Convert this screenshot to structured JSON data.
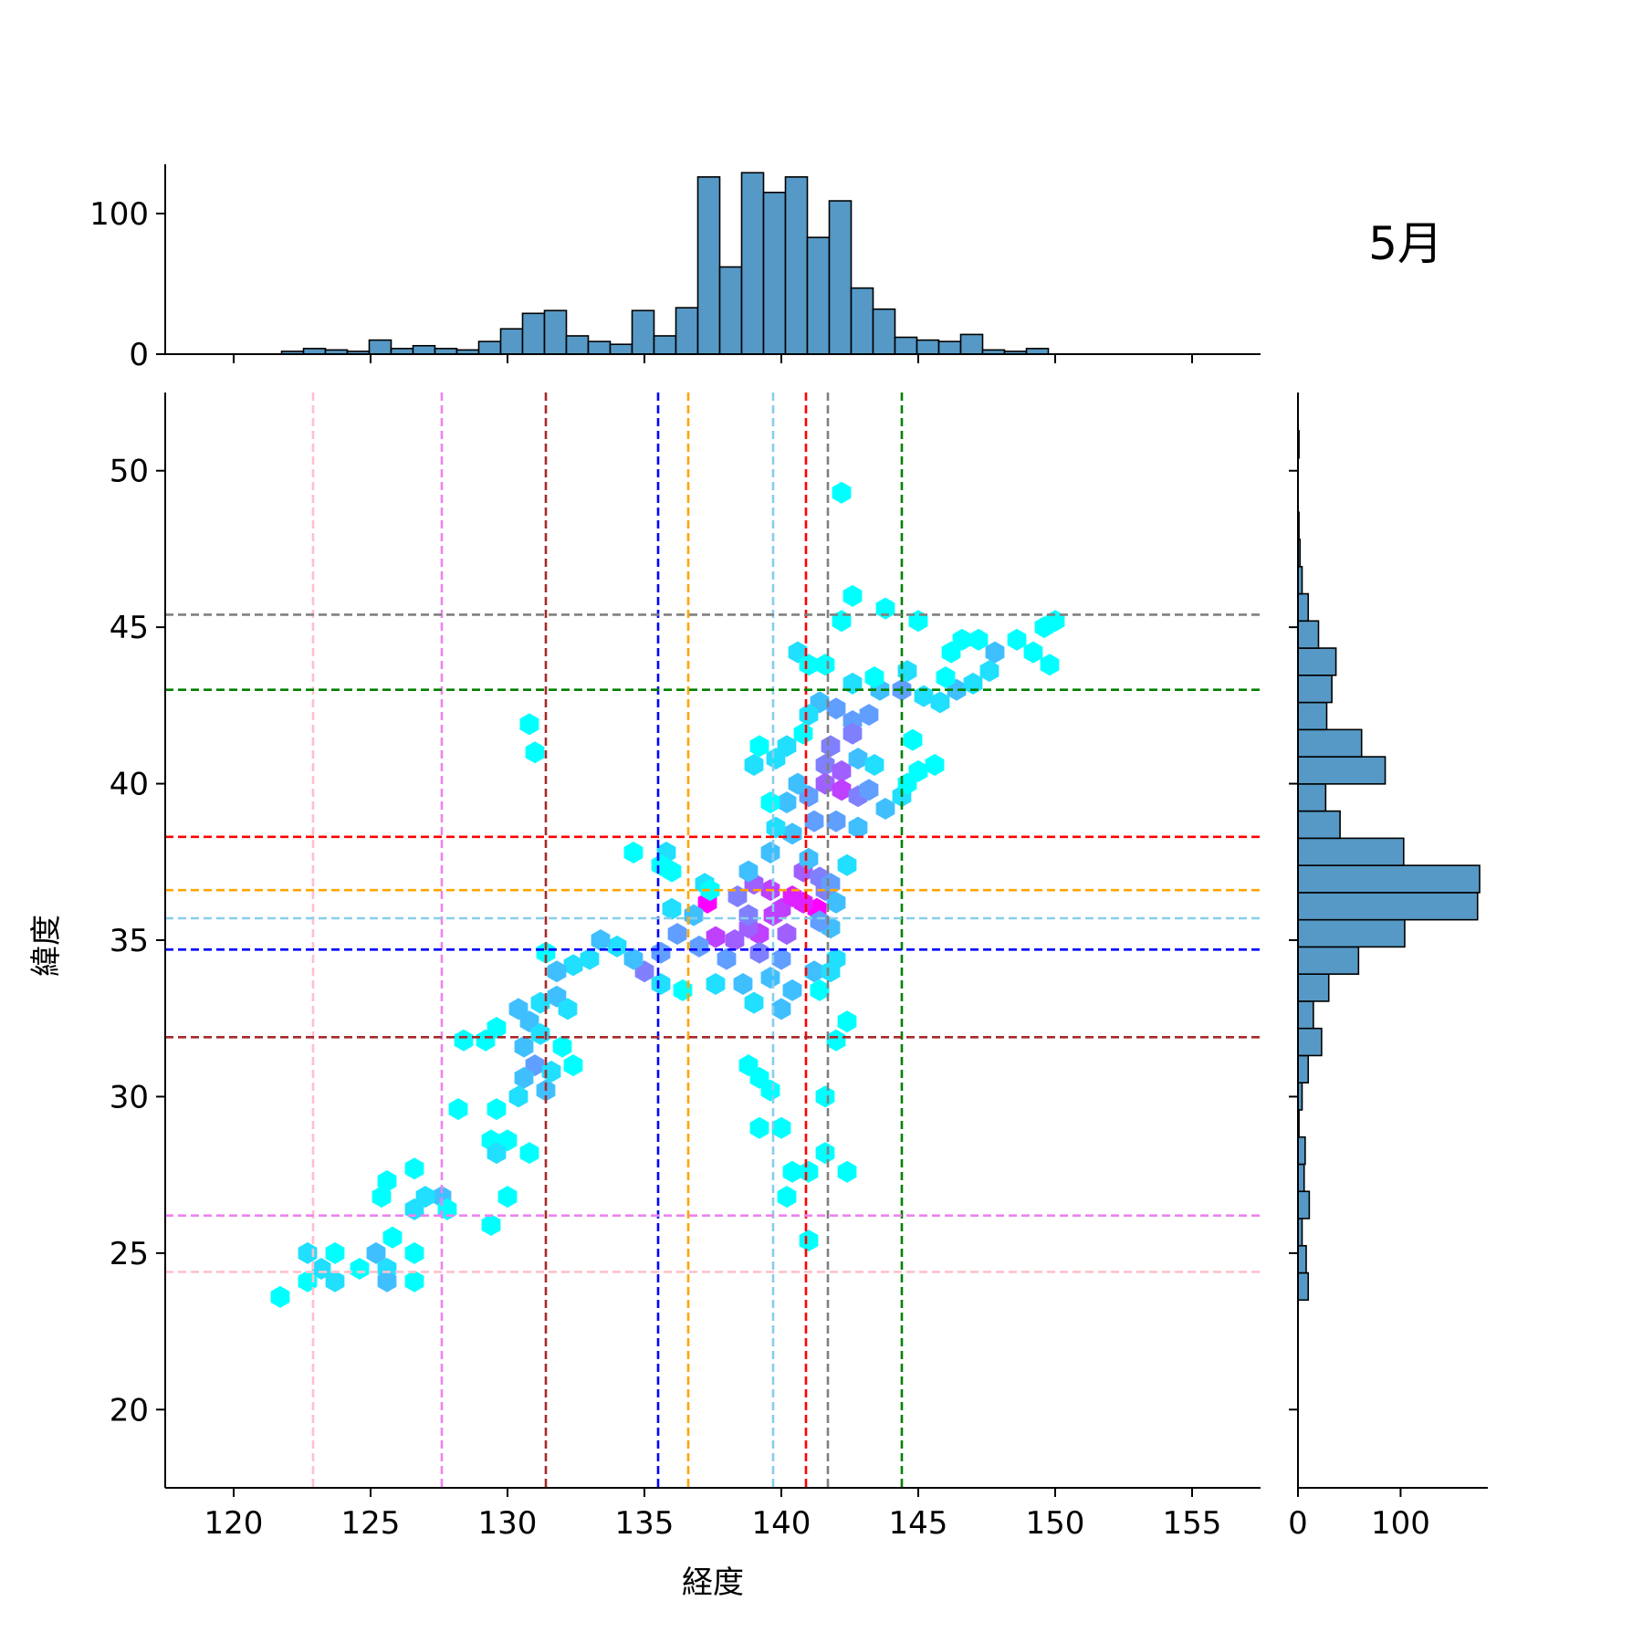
{
  "chart_data": {
    "type": "hexbin",
    "title": "5月",
    "xlabel": "経度",
    "ylabel": "緯度",
    "xlim": [
      117.5,
      157.5
    ],
    "ylim": [
      17.5,
      52.5
    ],
    "x_ticks": [
      120,
      125,
      130,
      135,
      140,
      145,
      150,
      155
    ],
    "y_ticks": [
      20,
      25,
      30,
      35,
      40,
      45,
      50
    ],
    "marginal_x": {
      "ylim": [
        0,
        135
      ],
      "y_ticks": [
        0,
        100
      ],
      "bin_start": 121.75,
      "bin_width": 0.8,
      "counts": [
        2,
        4,
        3,
        2,
        10,
        4,
        6,
        4,
        3,
        9,
        18,
        29,
        31,
        13,
        9,
        7,
        31,
        13,
        33,
        126,
        62,
        129,
        115,
        126,
        83,
        109,
        47,
        32,
        12,
        10,
        9,
        14,
        3,
        2,
        4,
        0,
        0,
        0,
        0,
        0,
        0,
        0
      ]
    },
    "marginal_y": {
      "xlim": [
        0,
        185
      ],
      "x_ticks": [
        0,
        100
      ],
      "bin_start": 23.5,
      "bin_width": 0.868,
      "counts": [
        10,
        8,
        4,
        11,
        6,
        7,
        1,
        4,
        10,
        23,
        15,
        30,
        59,
        104,
        175,
        177,
        103,
        41,
        27,
        85,
        62,
        28,
        33,
        37,
        20,
        10,
        4,
        2,
        1,
        0,
        0,
        1
      ]
    },
    "points": [
      [
        141.3,
        36.0,
        9
      ],
      [
        140.8,
        36.2,
        8
      ],
      [
        140.0,
        36.0,
        7
      ],
      [
        139.7,
        35.8,
        7
      ],
      [
        137.3,
        36.2,
        9
      ],
      [
        139.2,
        35.2,
        7
      ],
      [
        138.8,
        35.4,
        6
      ],
      [
        138.3,
        35.0,
        6
      ],
      [
        137.6,
        35.1,
        7
      ],
      [
        140.2,
        35.2,
        6
      ],
      [
        140.4,
        36.4,
        8
      ],
      [
        139.6,
        36.6,
        7
      ],
      [
        139.0,
        36.8,
        6
      ],
      [
        140.8,
        37.2,
        6
      ],
      [
        141.4,
        37.0,
        5
      ],
      [
        139.2,
        34.6,
        5
      ],
      [
        138.0,
        34.4,
        4
      ],
      [
        141.6,
        36.6,
        5
      ],
      [
        138.4,
        36.4,
        5
      ],
      [
        141.8,
        36.8,
        4
      ],
      [
        136.8,
        35.8,
        3
      ],
      [
        136.2,
        35.2,
        4
      ],
      [
        137.0,
        34.8,
        4
      ],
      [
        138.8,
        35.8,
        5
      ],
      [
        140.0,
        34.4,
        4
      ],
      [
        139.6,
        33.8,
        3
      ],
      [
        140.4,
        33.4,
        3
      ],
      [
        141.2,
        34.0,
        3
      ],
      [
        142.0,
        34.4,
        2
      ],
      [
        138.6,
        33.6,
        3
      ],
      [
        137.6,
        33.6,
        2
      ],
      [
        139.0,
        33.0,
        2
      ],
      [
        140.0,
        32.8,
        3
      ],
      [
        141.8,
        35.4,
        3
      ],
      [
        141.4,
        35.6,
        4
      ],
      [
        142.0,
        36.2,
        3
      ],
      [
        142.4,
        37.4,
        2
      ],
      [
        141.0,
        37.6,
        3
      ],
      [
        139.6,
        37.8,
        3
      ],
      [
        138.8,
        37.2,
        3
      ],
      [
        137.2,
        36.8,
        2
      ],
      [
        136.0,
        36.0,
        2
      ],
      [
        135.6,
        34.6,
        4
      ],
      [
        135.0,
        34.0,
        5
      ],
      [
        134.6,
        34.4,
        3
      ],
      [
        135.6,
        33.6,
        2
      ],
      [
        136.4,
        33.4,
        1
      ],
      [
        134.0,
        34.8,
        2
      ],
      [
        133.4,
        35.0,
        3
      ],
      [
        133.0,
        34.4,
        2
      ],
      [
        132.4,
        34.2,
        2
      ],
      [
        131.8,
        34.0,
        3
      ],
      [
        131.4,
        34.6,
        1
      ],
      [
        131.8,
        33.2,
        3
      ],
      [
        132.2,
        32.8,
        2
      ],
      [
        131.2,
        33.0,
        2
      ],
      [
        130.8,
        32.4,
        3
      ],
      [
        130.4,
        32.8,
        3
      ],
      [
        131.2,
        32.0,
        2
      ],
      [
        130.6,
        31.6,
        3
      ],
      [
        131.0,
        31.0,
        4
      ],
      [
        130.6,
        30.6,
        3
      ],
      [
        131.4,
        30.2,
        3
      ],
      [
        130.4,
        30.0,
        2
      ],
      [
        132.0,
        31.6,
        1
      ],
      [
        132.4,
        31.0,
        1
      ],
      [
        131.6,
        30.8,
        2
      ],
      [
        129.6,
        32.2,
        1
      ],
      [
        129.2,
        31.8,
        1
      ],
      [
        128.4,
        31.8,
        1
      ],
      [
        129.6,
        29.6,
        1
      ],
      [
        128.2,
        29.6,
        1
      ],
      [
        129.4,
        28.6,
        1
      ],
      [
        130.0,
        28.6,
        1
      ],
      [
        129.6,
        28.2,
        2
      ],
      [
        130.8,
        28.2,
        1
      ],
      [
        130.0,
        26.8,
        1
      ],
      [
        129.4,
        25.9,
        1
      ],
      [
        127.6,
        26.8,
        3
      ],
      [
        127.0,
        26.8,
        2
      ],
      [
        126.6,
        26.4,
        2
      ],
      [
        127.8,
        26.4,
        1
      ],
      [
        126.6,
        27.7,
        1
      ],
      [
        125.6,
        27.3,
        1
      ],
      [
        125.4,
        26.8,
        1
      ],
      [
        125.8,
        25.5,
        1
      ],
      [
        125.2,
        25.0,
        3
      ],
      [
        125.6,
        24.5,
        2
      ],
      [
        125.6,
        24.1,
        3
      ],
      [
        126.6,
        25.0,
        1
      ],
      [
        126.6,
        24.1,
        1
      ],
      [
        124.6,
        24.5,
        1
      ],
      [
        123.7,
        25.0,
        1
      ],
      [
        123.7,
        24.1,
        2
      ],
      [
        122.7,
        25.0,
        2
      ],
      [
        123.2,
        24.5,
        2
      ],
      [
        122.7,
        24.1,
        1
      ],
      [
        121.7,
        23.6,
        1
      ],
      [
        131.0,
        41.0,
        1
      ],
      [
        130.8,
        41.9,
        1
      ],
      [
        134.6,
        37.8,
        1
      ],
      [
        135.8,
        37.8,
        2
      ],
      [
        135.6,
        37.4,
        1
      ],
      [
        136.0,
        37.2,
        1
      ],
      [
        137.4,
        36.6,
        1
      ],
      [
        140.6,
        44.2,
        2
      ],
      [
        141.0,
        43.8,
        1
      ],
      [
        141.6,
        43.8,
        1
      ],
      [
        142.2,
        49.3,
        1
      ],
      [
        142.6,
        46.0,
        1
      ],
      [
        142.2,
        45.2,
        1
      ],
      [
        143.8,
        45.6,
        1
      ],
      [
        145.0,
        45.2,
        1
      ],
      [
        141.4,
        42.6,
        3
      ],
      [
        142.0,
        42.4,
        4
      ],
      [
        142.6,
        42.0,
        4
      ],
      [
        143.2,
        42.2,
        4
      ],
      [
        142.6,
        41.6,
        5
      ],
      [
        141.8,
        41.2,
        5
      ],
      [
        141.6,
        40.6,
        5
      ],
      [
        142.2,
        40.4,
        6
      ],
      [
        141.6,
        40.0,
        6
      ],
      [
        142.2,
        39.8,
        7
      ],
      [
        142.8,
        39.6,
        5
      ],
      [
        143.2,
        39.8,
        4
      ],
      [
        141.0,
        39.6,
        4
      ],
      [
        140.6,
        40.0,
        3
      ],
      [
        140.2,
        39.4,
        3
      ],
      [
        141.2,
        38.8,
        4
      ],
      [
        142.0,
        38.8,
        4
      ],
      [
        142.8,
        38.6,
        3
      ],
      [
        140.4,
        38.4,
        3
      ],
      [
        139.8,
        38.6,
        2
      ],
      [
        139.6,
        39.4,
        1
      ],
      [
        139.0,
        40.6,
        2
      ],
      [
        139.8,
        40.8,
        2
      ],
      [
        139.2,
        41.2,
        1
      ],
      [
        140.2,
        41.2,
        2
      ],
      [
        140.8,
        41.6,
        1
      ],
      [
        142.8,
        40.8,
        3
      ],
      [
        143.4,
        40.6,
        2
      ],
      [
        143.8,
        39.2,
        3
      ],
      [
        144.4,
        39.6,
        2
      ],
      [
        144.6,
        40.0,
        1
      ],
      [
        145.0,
        40.4,
        1
      ],
      [
        145.6,
        40.6,
        1
      ],
      [
        144.8,
        41.4,
        1
      ],
      [
        143.6,
        43.0,
        3
      ],
      [
        144.4,
        43.0,
        4
      ],
      [
        145.2,
        42.8,
        2
      ],
      [
        145.8,
        42.6,
        2
      ],
      [
        146.4,
        43.0,
        3
      ],
      [
        147.0,
        43.2,
        2
      ],
      [
        147.6,
        43.6,
        2
      ],
      [
        147.8,
        44.2,
        3
      ],
      [
        146.2,
        44.2,
        1
      ],
      [
        146.6,
        44.6,
        1
      ],
      [
        147.2,
        44.6,
        1
      ],
      [
        148.6,
        44.6,
        1
      ],
      [
        149.2,
        44.2,
        1
      ],
      [
        149.8,
        43.8,
        1
      ],
      [
        149.6,
        45.0,
        1
      ],
      [
        150.0,
        45.2,
        1
      ],
      [
        146.0,
        43.4,
        1
      ],
      [
        144.6,
        43.6,
        2
      ],
      [
        143.4,
        43.4,
        1
      ],
      [
        142.6,
        43.2,
        2
      ],
      [
        141.0,
        42.2,
        2
      ],
      [
        141.8,
        34.0,
        2
      ],
      [
        141.4,
        33.4,
        1
      ],
      [
        142.4,
        32.4,
        1
      ],
      [
        142.0,
        31.8,
        1
      ],
      [
        141.6,
        30.0,
        1
      ],
      [
        138.8,
        31.0,
        1
      ],
      [
        139.2,
        30.6,
        1
      ],
      [
        139.6,
        30.2,
        1
      ],
      [
        139.2,
        29.0,
        1
      ],
      [
        140.0,
        29.0,
        1
      ],
      [
        140.4,
        27.6,
        1
      ],
      [
        140.2,
        26.8,
        1
      ],
      [
        141.0,
        27.6,
        1
      ],
      [
        141.6,
        28.2,
        1
      ],
      [
        142.4,
        27.6,
        1
      ],
      [
        141.0,
        25.4,
        1
      ]
    ],
    "reference_lines": {
      "vertical": [
        {
          "x": 122.9,
          "color": "#ffc0cb"
        },
        {
          "x": 127.6,
          "color": "#ee82ee"
        },
        {
          "x": 131.4,
          "color": "#a52a2a"
        },
        {
          "x": 135.5,
          "color": "#0000ff"
        },
        {
          "x": 136.6,
          "color": "#ffa500"
        },
        {
          "x": 139.7,
          "color": "#87ceeb"
        },
        {
          "x": 140.9,
          "color": "#ff0000"
        },
        {
          "x": 141.7,
          "color": "#808080"
        },
        {
          "x": 144.4,
          "color": "#008000"
        }
      ],
      "horizontal": [
        {
          "y": 45.4,
          "color": "#808080"
        },
        {
          "y": 43.0,
          "color": "#008000"
        },
        {
          "y": 38.3,
          "color": "#ff0000"
        },
        {
          "y": 36.6,
          "color": "#ffa500"
        },
        {
          "y": 35.7,
          "color": "#87ceeb"
        },
        {
          "y": 34.7,
          "color": "#0000ff"
        },
        {
          "y": 31.9,
          "color": "#a52a2a"
        },
        {
          "y": 26.2,
          "color": "#ee82ee"
        },
        {
          "y": 24.4,
          "color": "#ffc0cb"
        }
      ]
    },
    "colormap": "cool",
    "hist_color": "#5699c6",
    "grid": false
  }
}
